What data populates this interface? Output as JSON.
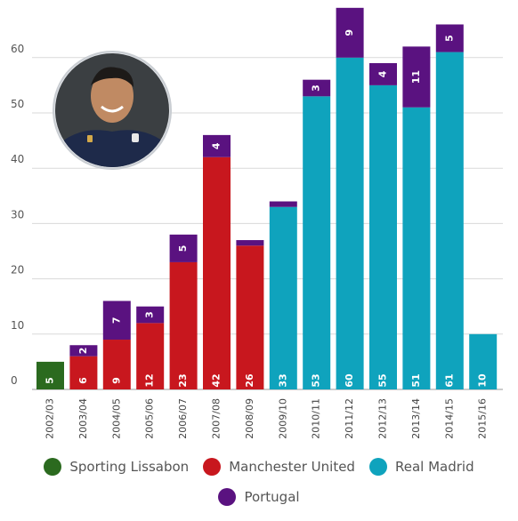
{
  "chart_data": {
    "type": "bar",
    "stacked": true,
    "categories": [
      "2002/03",
      "2003/04",
      "2004/05",
      "2005/06",
      "2006/07",
      "2007/08",
      "2008/09",
      "2009/10",
      "2010/11",
      "2011/12",
      "2012/13",
      "2013/14",
      "2014/15",
      "2015/16"
    ],
    "club_values": [
      5,
      6,
      9,
      12,
      23,
      42,
      26,
      33,
      53,
      60,
      55,
      51,
      61,
      10
    ],
    "club_names": [
      "Sporting Lissabon",
      "Manchester United",
      "Manchester United",
      "Manchester United",
      "Manchester United",
      "Manchester United",
      "Manchester United",
      "Real Madrid",
      "Real Madrid",
      "Real Madrid",
      "Real Madrid",
      "Real Madrid",
      "Real Madrid",
      "Real Madrid"
    ],
    "portugal_values": [
      0,
      2,
      7,
      3,
      5,
      4,
      1,
      1,
      3,
      9,
      4,
      11,
      5,
      0
    ],
    "portugal_labels": [
      "",
      "2",
      "7",
      "3",
      "5",
      "4",
      "",
      "",
      "3",
      "9",
      "4",
      "11",
      "5",
      ""
    ],
    "yticks": [
      0,
      10,
      20,
      30,
      40,
      50,
      60
    ],
    "ylim": [
      0,
      70
    ],
    "grid": true,
    "legend": [
      "Sporting Lissabon",
      "Manchester United",
      "Real Madrid",
      "Portugal"
    ],
    "legend_placement": "bottom",
    "colors": {
      "Sporting Lissabon": "#2b6a1f",
      "Manchester United": "#c8171e",
      "Real Madrid": "#0fa3bd",
      "Portugal": "#5a1280"
    }
  },
  "legend": {
    "sporting": "Sporting Lissabon",
    "manutd": "Manchester United",
    "realmadrid": "Real Madrid",
    "portugal": "Portugal"
  },
  "photo": {
    "icon": "player-portrait"
  }
}
